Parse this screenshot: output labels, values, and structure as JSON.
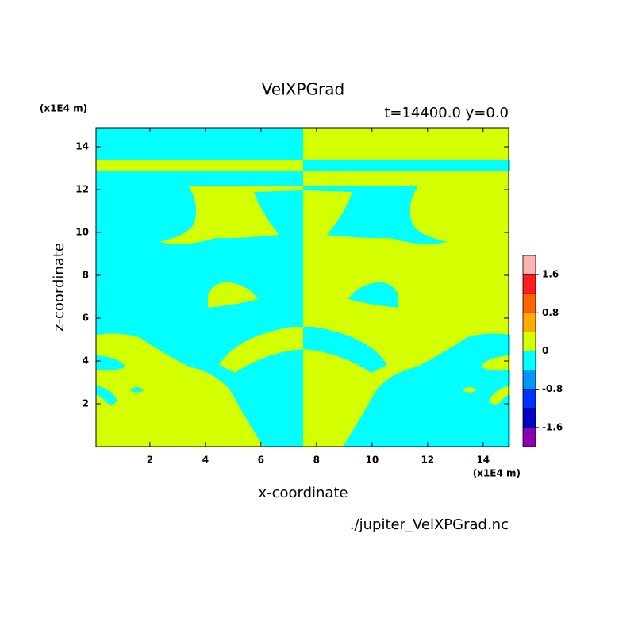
{
  "chart_data": {
    "type": "contour",
    "title": "VelXPGrad",
    "subtitle": "t=14400.0 y=0.0",
    "x_label": "x-coordinate",
    "y_label": "z-coordinate",
    "x_unit": "(x1E4 m)",
    "y_unit": "(x1E4 m)",
    "source": "./jupiter_VelXPGrad.nc",
    "xlim": [
      0.06,
      14.92
    ],
    "ylim": [
      0,
      14.89
    ],
    "xticks": [
      2,
      4,
      6,
      8,
      10,
      12,
      14
    ],
    "yticks": [
      2,
      4,
      6,
      8,
      10,
      12,
      14
    ],
    "colorbar": {
      "clim": [
        -2,
        2
      ],
      "colors": [
        "#8c00b4",
        "#0000c8",
        "#0032ff",
        "#0096ff",
        "#00ffff",
        "#d4ff00",
        "#ffaa00",
        "#ff6400",
        "#ff1e1e",
        "#ffb4b4"
      ],
      "ticks": [
        -1.6,
        -0.8,
        0,
        0.8,
        1.6
      ]
    }
  }
}
